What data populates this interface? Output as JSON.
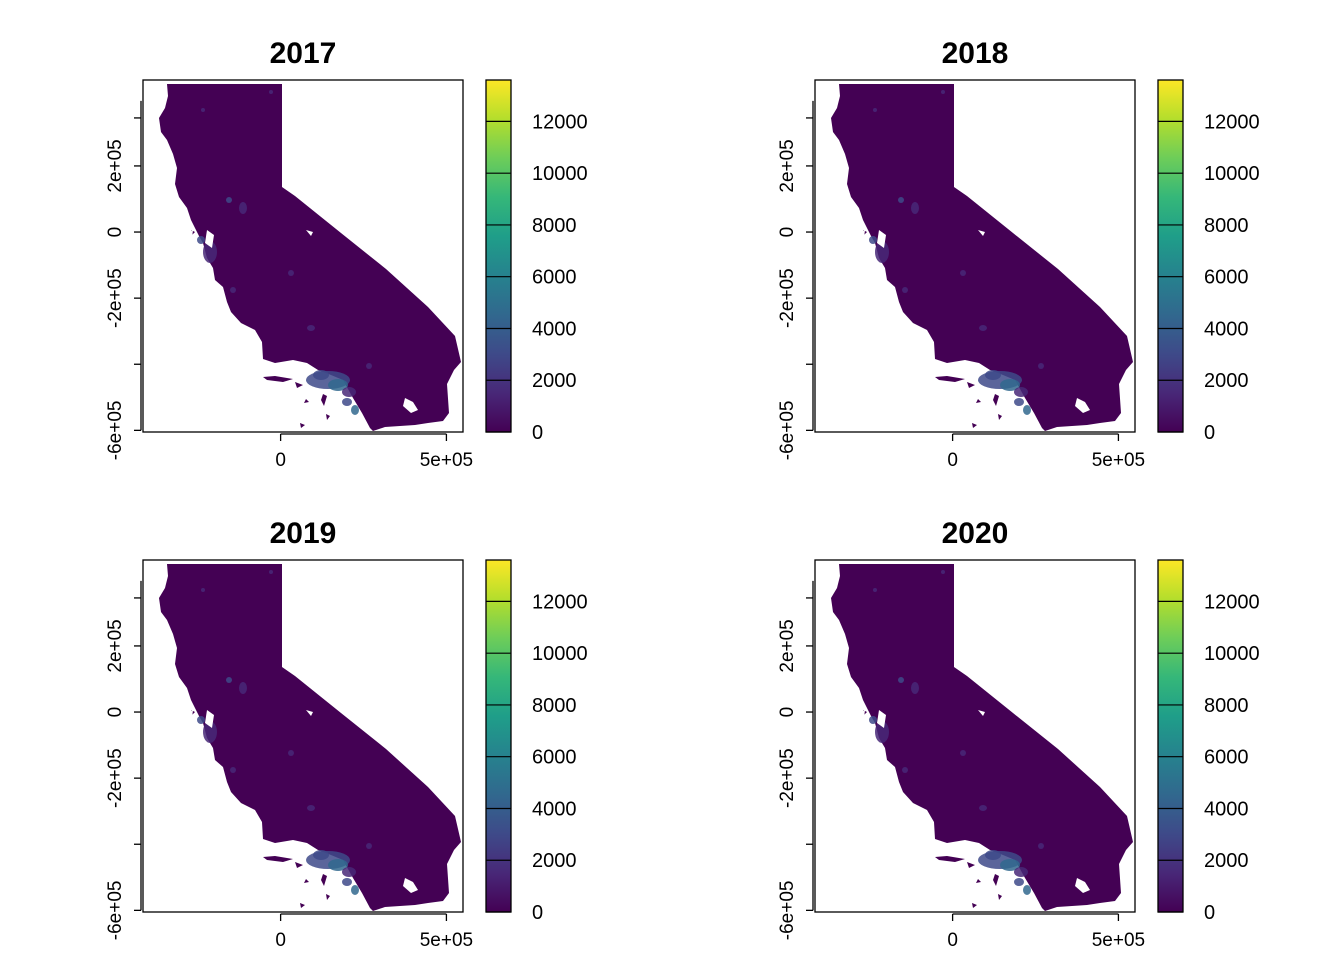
{
  "figure": {
    "panels": [
      {
        "title": "2017"
      },
      {
        "title": "2018"
      },
      {
        "title": "2019"
      },
      {
        "title": "2020"
      }
    ],
    "x_axis": {
      "ticks": [
        {
          "value": 0,
          "label": "0"
        },
        {
          "value": 500000,
          "label": "5e+05"
        }
      ],
      "range": [
        -415000,
        550000
      ]
    },
    "y_axis": {
      "ticks": [
        {
          "value": 200000,
          "label": "2e+05"
        },
        {
          "value": 0,
          "label": "0"
        },
        {
          "value": -200000,
          "label": "-2e+05"
        },
        {
          "value": -400000,
          "label": ""
        },
        {
          "value": -600000,
          "label": "-6e+05"
        }
      ],
      "range": [
        -605000,
        460000
      ]
    },
    "colorbar": {
      "palette": "viridis",
      "colors": [
        "#440154",
        "#482878",
        "#3E4A89",
        "#31688E",
        "#26828E",
        "#1F9E89",
        "#35B779",
        "#6DCD59",
        "#B4DE2C",
        "#FDE725"
      ],
      "range": [
        0,
        13600
      ],
      "ticks": [
        0,
        2000,
        4000,
        6000,
        8000,
        10000,
        12000
      ]
    },
    "map_fill_color": "#440154",
    "hotspot_colors": [
      "#3E4A89",
      "#31688E",
      "#482878"
    ]
  }
}
